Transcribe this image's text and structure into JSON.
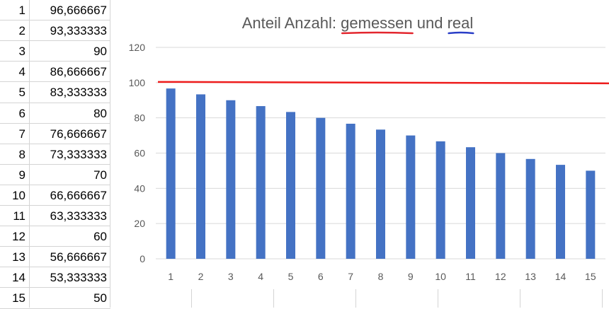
{
  "sheet": {
    "rows": [
      {
        "a": "1",
        "b": "96,666667"
      },
      {
        "a": "2",
        "b": "93,333333"
      },
      {
        "a": "3",
        "b": "90"
      },
      {
        "a": "4",
        "b": "86,666667"
      },
      {
        "a": "5",
        "b": "83,333333"
      },
      {
        "a": "6",
        "b": "80"
      },
      {
        "a": "7",
        "b": "76,666667"
      },
      {
        "a": "8",
        "b": "73,333333"
      },
      {
        "a": "9",
        "b": "70"
      },
      {
        "a": "10",
        "b": "66,666667"
      },
      {
        "a": "11",
        "b": "63,333333"
      },
      {
        "a": "12",
        "b": "60"
      },
      {
        "a": "13",
        "b": "56,666667"
      },
      {
        "a": "14",
        "b": "53,333333"
      },
      {
        "a": "15",
        "b": "50"
      }
    ]
  },
  "chart_data": {
    "type": "bar",
    "title_parts": [
      "Anteil Anzahl: ",
      "gemessen",
      " und ",
      "real"
    ],
    "categories": [
      "1",
      "2",
      "3",
      "4",
      "5",
      "6",
      "7",
      "8",
      "9",
      "10",
      "11",
      "12",
      "13",
      "14",
      "15"
    ],
    "values": [
      96.666667,
      93.333333,
      90,
      86.666667,
      83.333333,
      80,
      76.666667,
      73.333333,
      70,
      66.666667,
      63.333333,
      60,
      56.666667,
      53.333333,
      50
    ],
    "yticks": [
      "0",
      "20",
      "40",
      "60",
      "80",
      "100",
      "120"
    ],
    "ylim": [
      0,
      120
    ],
    "grid": true,
    "reference_line": {
      "y": 100,
      "color": "#ee1c1c"
    },
    "bar_color": "#4472c4",
    "underline_colors": {
      "gemessen": "#e3262e",
      "real": "#2a3ec7"
    }
  }
}
